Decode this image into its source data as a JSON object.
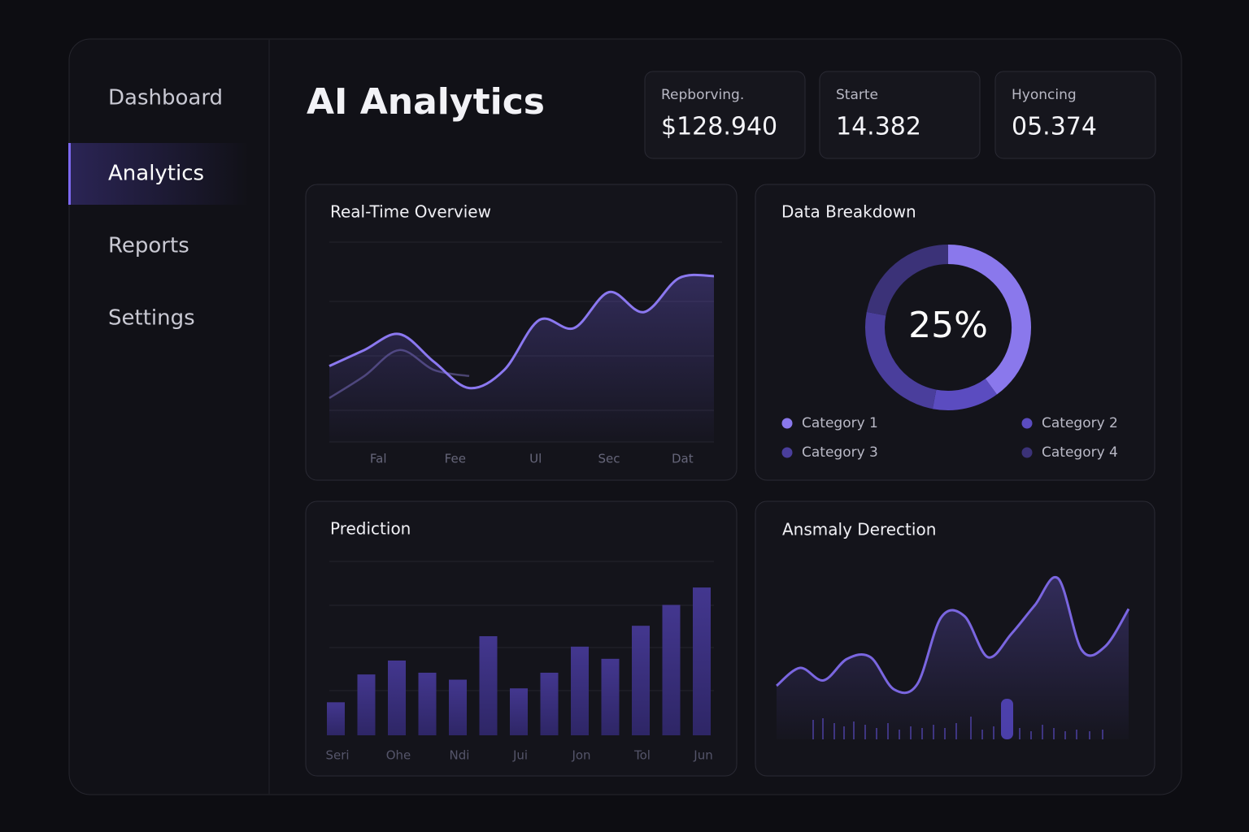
{
  "nav": {
    "items": [
      "Dashboard",
      "Analytics",
      "Reports",
      "Settings"
    ],
    "active": 1
  },
  "header": {
    "title": "AI Analytics"
  },
  "stats": [
    {
      "label": "Repborving.",
      "value": "$128.940"
    },
    {
      "label": "Starte",
      "value": "14.382"
    },
    {
      "label": "Hyoncing",
      "value": "05.374"
    }
  ],
  "chart_data": [
    {
      "type": "line",
      "title": "Real-Time Overview",
      "x": [
        0,
        1,
        2,
        3,
        4,
        5,
        6,
        7,
        8,
        9,
        10,
        11
      ],
      "xlim": [
        0,
        11
      ],
      "xticks": [
        {
          "value": 1.4,
          "label": "Fal"
        },
        {
          "value": 3.6,
          "label": "Fee"
        },
        {
          "value": 5.9,
          "label": "Ul"
        },
        {
          "value": 8,
          "label": "Sec"
        },
        {
          "value": 10.1,
          "label": "Dat"
        }
      ],
      "ylim": [
        0,
        100
      ],
      "series": [
        {
          "color": "#8b78f0",
          "values": [
            38,
            46,
            54,
            40,
            27,
            36,
            61,
            57,
            75,
            65,
            82,
            83
          ]
        },
        {
          "color": "#4a4470",
          "values": [
            22,
            33,
            46,
            36,
            33,
            null,
            null,
            null,
            null,
            null,
            null,
            null
          ]
        }
      ]
    },
    {
      "type": "pie",
      "title": "Data Breakdown",
      "annotation": "25%",
      "categories": [
        "Category 1",
        "Category 2",
        "Category 3",
        "Category 4"
      ],
      "values": [
        40,
        13,
        25,
        22
      ],
      "colors": [
        "#8a78ec",
        "#5b4cc0",
        "#4a3e9c",
        "#3b3278"
      ]
    },
    {
      "type": "bar",
      "title": "Prediction",
      "categories": [
        "Seri",
        null,
        "Ohe",
        null,
        "Ndi",
        null,
        "Jui",
        null,
        "Jon",
        null,
        "Tol",
        null,
        "Jun"
      ],
      "values": [
        19,
        35,
        43,
        36,
        32,
        57,
        27,
        36,
        51,
        44,
        63,
        75,
        85
      ],
      "ylim": [
        0,
        100
      ],
      "color": "#3d3284"
    },
    {
      "type": "line",
      "title": "Ansmaly Derection",
      "ylim": [
        0,
        100
      ],
      "series": [
        {
          "color": "#7a66e0",
          "values": [
            30,
            40,
            33,
            45,
            46,
            28,
            31,
            68,
            69,
            46,
            59,
            75,
            90,
            50,
            52,
            73
          ]
        }
      ]
    }
  ]
}
